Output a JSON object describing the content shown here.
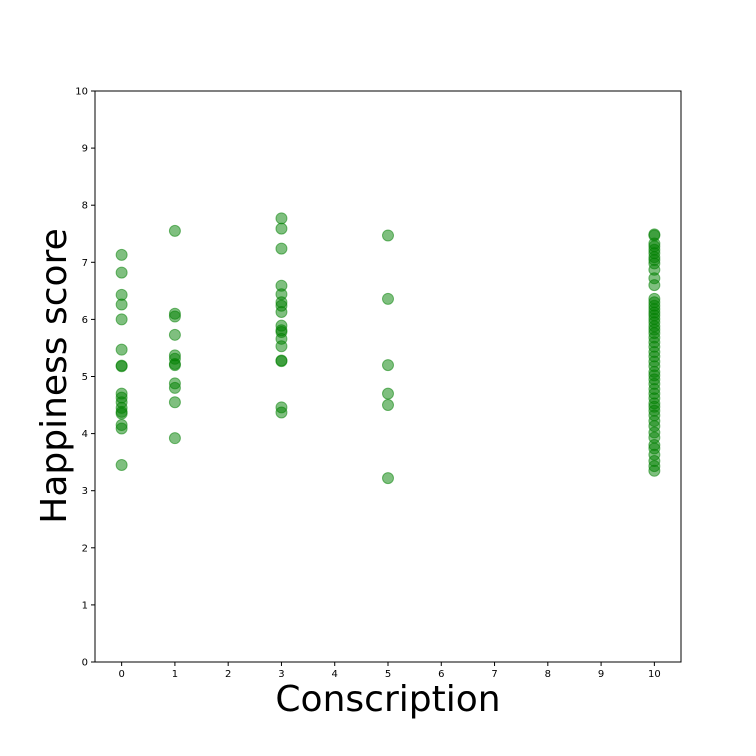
{
  "chart_data": {
    "type": "scatter",
    "title": "",
    "xlabel": "Conscription",
    "ylabel": "Happiness score",
    "xlim": [
      -0.5,
      10.5
    ],
    "ylim": [
      0,
      10
    ],
    "xticks": [
      0,
      1,
      2,
      3,
      4,
      5,
      6,
      7,
      8,
      9,
      10
    ],
    "yticks": [
      0,
      1,
      2,
      3,
      4,
      5,
      6,
      7,
      8,
      9,
      10
    ],
    "grid": false,
    "marker_color": "#008000",
    "marker_alpha": 0.5,
    "points": [
      {
        "x": 0,
        "y": 7.13
      },
      {
        "x": 0,
        "y": 6.82
      },
      {
        "x": 0,
        "y": 6.43
      },
      {
        "x": 0,
        "y": 6.26
      },
      {
        "x": 0,
        "y": 6.0
      },
      {
        "x": 0,
        "y": 5.47
      },
      {
        "x": 0,
        "y": 5.18
      },
      {
        "x": 0,
        "y": 5.19
      },
      {
        "x": 0,
        "y": 4.7
      },
      {
        "x": 0,
        "y": 4.63
      },
      {
        "x": 0,
        "y": 4.55
      },
      {
        "x": 0,
        "y": 4.45
      },
      {
        "x": 0,
        "y": 4.38
      },
      {
        "x": 0,
        "y": 4.35
      },
      {
        "x": 0,
        "y": 4.15
      },
      {
        "x": 0,
        "y": 4.09
      },
      {
        "x": 0,
        "y": 3.45
      },
      {
        "x": 1,
        "y": 7.55
      },
      {
        "x": 1,
        "y": 6.1
      },
      {
        "x": 1,
        "y": 6.05
      },
      {
        "x": 1,
        "y": 5.73
      },
      {
        "x": 1,
        "y": 5.37
      },
      {
        "x": 1,
        "y": 5.31
      },
      {
        "x": 1,
        "y": 5.22
      },
      {
        "x": 1,
        "y": 5.2
      },
      {
        "x": 1,
        "y": 4.88
      },
      {
        "x": 1,
        "y": 4.8
      },
      {
        "x": 1,
        "y": 4.55
      },
      {
        "x": 1,
        "y": 3.92
      },
      {
        "x": 3,
        "y": 7.77
      },
      {
        "x": 3,
        "y": 7.59
      },
      {
        "x": 3,
        "y": 7.24
      },
      {
        "x": 3,
        "y": 6.59
      },
      {
        "x": 3,
        "y": 6.44
      },
      {
        "x": 3,
        "y": 6.3
      },
      {
        "x": 3,
        "y": 6.24
      },
      {
        "x": 3,
        "y": 6.13
      },
      {
        "x": 3,
        "y": 5.89
      },
      {
        "x": 3,
        "y": 5.81
      },
      {
        "x": 3,
        "y": 5.78
      },
      {
        "x": 3,
        "y": 5.66
      },
      {
        "x": 3,
        "y": 5.53
      },
      {
        "x": 3,
        "y": 5.28
      },
      {
        "x": 3,
        "y": 5.27
      },
      {
        "x": 3,
        "y": 4.46
      },
      {
        "x": 3,
        "y": 4.37
      },
      {
        "x": 5,
        "y": 7.47
      },
      {
        "x": 5,
        "y": 6.36
      },
      {
        "x": 5,
        "y": 5.2
      },
      {
        "x": 5,
        "y": 4.7
      },
      {
        "x": 5,
        "y": 4.5
      },
      {
        "x": 5,
        "y": 3.22
      },
      {
        "x": 10,
        "y": 7.49
      },
      {
        "x": 10,
        "y": 7.47
      },
      {
        "x": 10,
        "y": 7.33
      },
      {
        "x": 10,
        "y": 7.28
      },
      {
        "x": 10,
        "y": 7.22
      },
      {
        "x": 10,
        "y": 7.16
      },
      {
        "x": 10,
        "y": 7.09
      },
      {
        "x": 10,
        "y": 7.04
      },
      {
        "x": 10,
        "y": 6.98
      },
      {
        "x": 10,
        "y": 6.87
      },
      {
        "x": 10,
        "y": 6.72
      },
      {
        "x": 10,
        "y": 6.6
      },
      {
        "x": 10,
        "y": 6.36
      },
      {
        "x": 10,
        "y": 6.3
      },
      {
        "x": 10,
        "y": 6.24
      },
      {
        "x": 10,
        "y": 6.18
      },
      {
        "x": 10,
        "y": 6.12
      },
      {
        "x": 10,
        "y": 6.07
      },
      {
        "x": 10,
        "y": 6.01
      },
      {
        "x": 10,
        "y": 5.95
      },
      {
        "x": 10,
        "y": 5.88
      },
      {
        "x": 10,
        "y": 5.82
      },
      {
        "x": 10,
        "y": 5.76
      },
      {
        "x": 10,
        "y": 5.68
      },
      {
        "x": 10,
        "y": 5.6
      },
      {
        "x": 10,
        "y": 5.52
      },
      {
        "x": 10,
        "y": 5.43
      },
      {
        "x": 10,
        "y": 5.35
      },
      {
        "x": 10,
        "y": 5.26
      },
      {
        "x": 10,
        "y": 5.18
      },
      {
        "x": 10,
        "y": 5.08
      },
      {
        "x": 10,
        "y": 5.02
      },
      {
        "x": 10,
        "y": 4.95
      },
      {
        "x": 10,
        "y": 4.87
      },
      {
        "x": 10,
        "y": 4.78
      },
      {
        "x": 10,
        "y": 4.7
      },
      {
        "x": 10,
        "y": 4.62
      },
      {
        "x": 10,
        "y": 4.53
      },
      {
        "x": 10,
        "y": 4.47
      },
      {
        "x": 10,
        "y": 4.4
      },
      {
        "x": 10,
        "y": 4.32
      },
      {
        "x": 10,
        "y": 4.22
      },
      {
        "x": 10,
        "y": 4.13
      },
      {
        "x": 10,
        "y": 4.02
      },
      {
        "x": 10,
        "y": 3.93
      },
      {
        "x": 10,
        "y": 3.8
      },
      {
        "x": 10,
        "y": 3.74
      },
      {
        "x": 10,
        "y": 3.63
      },
      {
        "x": 10,
        "y": 3.52
      },
      {
        "x": 10,
        "y": 3.43
      },
      {
        "x": 10,
        "y": 3.35
      }
    ]
  }
}
